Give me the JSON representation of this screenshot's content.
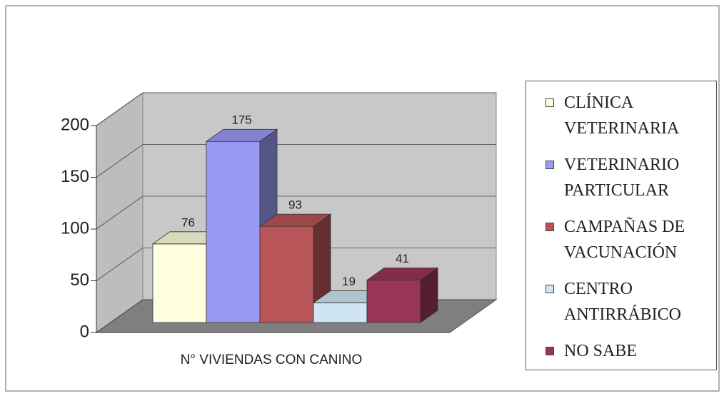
{
  "chart_data": {
    "type": "bar3d",
    "categories": [
      "N° VIVIENDAS CON CANINO"
    ],
    "series": [
      {
        "name": "CLÍNICA VETERINARIA",
        "color": "#ffffe0",
        "values": [
          76
        ]
      },
      {
        "name": "VETERINARIO PARTICULAR",
        "color": "#9a9af5",
        "values": [
          175
        ]
      },
      {
        "name": "CAMPAÑAS DE VACUNACIÓN",
        "color": "#b85558",
        "values": [
          93
        ]
      },
      {
        "name": "CENTRO ANTIRRÁBICO",
        "color": "#cfe6f2",
        "values": [
          19
        ]
      },
      {
        "name": "NO SABE",
        "color": "#9a3558",
        "values": [
          41
        ]
      }
    ],
    "ylim": [
      0,
      200
    ],
    "yticks": [
      0,
      50,
      100,
      150,
      200
    ],
    "grid": true
  }
}
